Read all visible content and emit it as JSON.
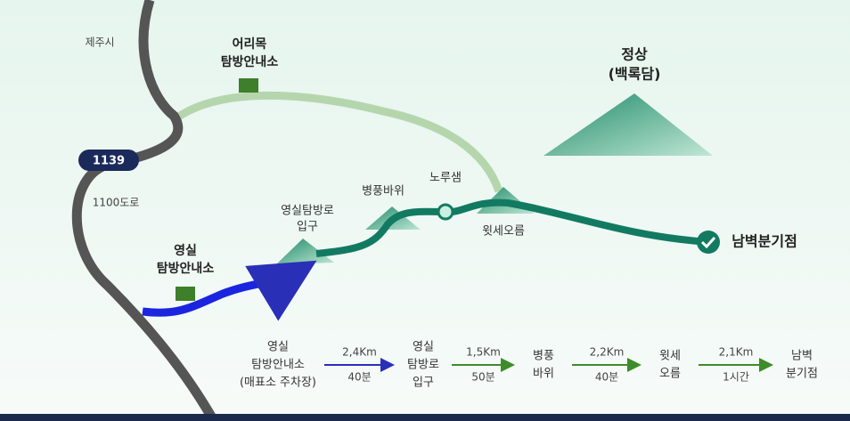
{
  "map": {
    "labels": {
      "city": "제주시",
      "road_number": "1139",
      "road_name": "1100도로",
      "eorimok": [
        "어리목",
        "탐방안내소"
      ],
      "summit": [
        "정상",
        "(백록담)"
      ],
      "byeongpung": "병풍바위",
      "noru": "노루샘",
      "yeongsil_entrance": [
        "영실탐방로",
        "입구"
      ],
      "witse": "윗세오름",
      "nambyeok": "남벽분기점",
      "yeongsil_center": [
        "영실",
        "탐방안내소"
      ]
    }
  },
  "route": {
    "stops": [
      [
        "영실",
        "탐방안내소",
        "(매표소 주차장)"
      ],
      [
        "영실",
        "탐방로",
        "입구"
      ],
      [
        "병풍",
        "바위"
      ],
      [
        "윗세",
        "오름"
      ],
      [
        "남벽",
        "분기점"
      ]
    ],
    "legs": [
      {
        "distance": "2,4Km",
        "time": "40분"
      },
      {
        "distance": "1,5Km",
        "time": "50분"
      },
      {
        "distance": "2,2Km",
        "time": "40분"
      },
      {
        "distance": "2,1Km",
        "time": "1시간"
      }
    ]
  }
}
